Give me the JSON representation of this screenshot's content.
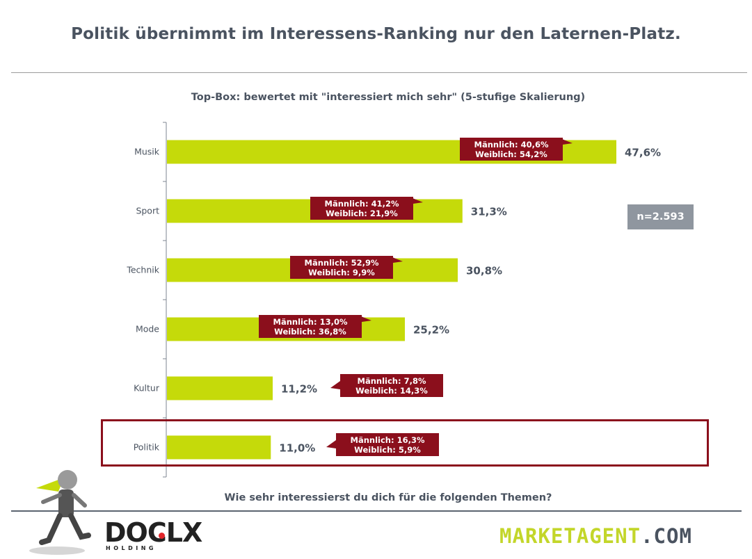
{
  "header": {
    "title": "Politik übernimmt im Interessens-Ranking nur den Laternen-Platz.",
    "subtitle": "Top-Box: bewertet mit \"interessiert mich sehr\" (5-stufige Skalierung)"
  },
  "sample_size": "n=2.593",
  "question": "Wie sehr interessierst du dich für die folgenden Themen?",
  "highlighted_category": "Politik",
  "colors": {
    "bar": "#c5da0a",
    "callout": "#8b0f1c",
    "highlight_border": "#8b0f1c",
    "text": "#4a5360",
    "n_box": "#8f969f"
  },
  "logos": {
    "left": {
      "main": "DOCLX",
      "sub": "HOLDING"
    },
    "right": {
      "green": "MARKETAGENT",
      "dark": ".COM"
    }
  },
  "chart_data": {
    "type": "bar",
    "orientation": "horizontal",
    "title": "Top-Box: bewertet mit \"interessiert mich sehr\" (5-stufige Skalierung)",
    "xlabel": "",
    "ylabel": "",
    "xlim": [
      0,
      50
    ],
    "grid": false,
    "categories": [
      "Musik",
      "Sport",
      "Technik",
      "Mode",
      "Kultur",
      "Politik"
    ],
    "values": [
      47.6,
      31.3,
      30.8,
      25.2,
      11.2,
      11.0
    ],
    "value_labels": [
      "47,6%",
      "31,3%",
      "30,8%",
      "25,2%",
      "11,2%",
      "11,0%"
    ],
    "series_breakdown": [
      {
        "name": "Männlich",
        "values": [
          40.6,
          41.2,
          52.9,
          13.0,
          7.8,
          16.3
        ]
      },
      {
        "name": "Weiblich",
        "values": [
          54.2,
          21.9,
          9.9,
          36.8,
          14.3,
          5.9
        ]
      }
    ],
    "annotations": [
      {
        "category": "Musik",
        "line1": "Männlich: 40,6%",
        "line2": "Weiblich: 54,2%"
      },
      {
        "category": "Sport",
        "line1": "Männlich: 41,2%",
        "line2": "Weiblich: 21,9%"
      },
      {
        "category": "Technik",
        "line1": "Männlich: 52,9%",
        "line2": "Weiblich: 9,9%"
      },
      {
        "category": "Mode",
        "line1": "Männlich: 13,0%",
        "line2": "Weiblich: 36,8%"
      },
      {
        "category": "Kultur",
        "line1": "Männlich: 7,8%",
        "line2": "Weiblich: 14,3%"
      },
      {
        "category": "Politik",
        "line1": "Männlich: 16,3%",
        "line2": "Weiblich: 5,9%"
      }
    ]
  }
}
